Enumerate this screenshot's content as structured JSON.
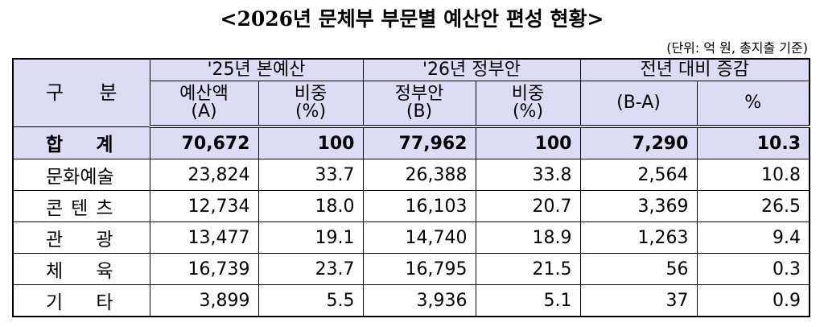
{
  "title": "<2026년 문체부 부문별 예산안 편성 현황>",
  "unit": "(단위: 억 원, 총지출 기준)",
  "table": {
    "category_header": "구  분",
    "groups": [
      "'25년 본예산",
      "'26년 정부안",
      "전년 대비 증감"
    ],
    "subheaders": [
      [
        "예산액",
        "(A)"
      ],
      [
        "비중",
        "(%)"
      ],
      [
        "정부안",
        "(B)"
      ],
      [
        "비중",
        "(%)"
      ],
      [
        "(B-A)"
      ],
      [
        "%"
      ]
    ],
    "rows": [
      [
        "합  계",
        "70,672",
        "100",
        "77,962",
        "100",
        "7,290",
        "10.3"
      ],
      [
        "문화예술",
        "23,824",
        "33.7",
        "26,388",
        "33.8",
        "2,564",
        "10.8"
      ],
      [
        "콘 텐 츠",
        "12,734",
        "18.0",
        "16,103",
        "20.7",
        "3,369",
        "26.5"
      ],
      [
        "관  광",
        "13,477",
        "19.1",
        "14,740",
        "18.9",
        "1,263",
        "9.4"
      ],
      [
        "체  육",
        "16,739",
        "23.7",
        "16,795",
        "21.5",
        "56",
        "0.3"
      ],
      [
        "기  타",
        "3,899",
        "5.5",
        "3,936",
        "5.1",
        "37",
        "0.9"
      ]
    ]
  }
}
